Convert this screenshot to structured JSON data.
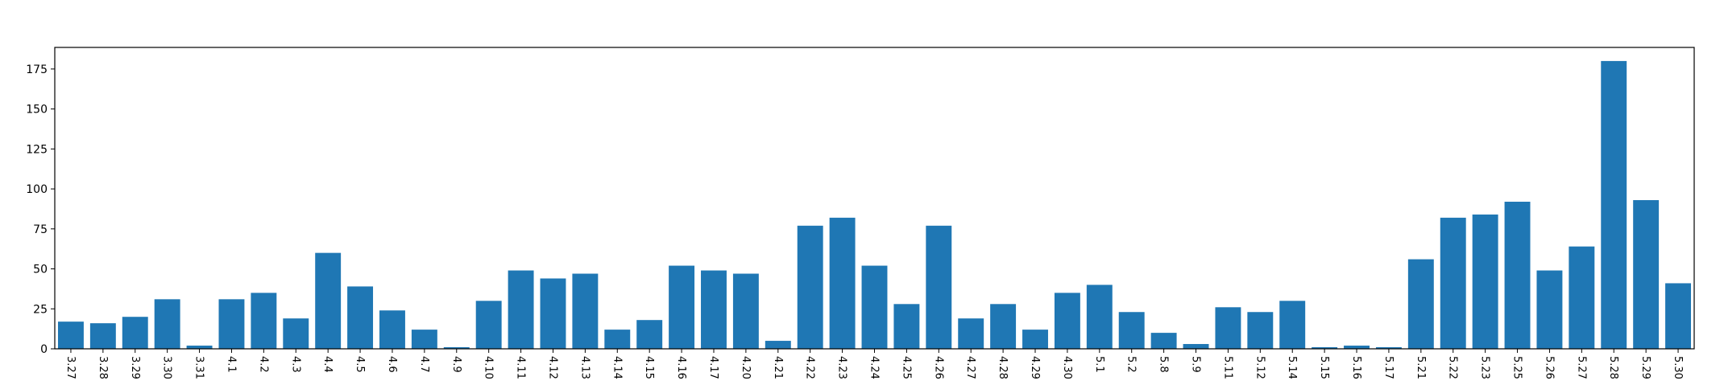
{
  "chart_data": {
    "type": "bar",
    "title": "",
    "xlabel": "",
    "ylabel": "",
    "categories": [
      "3.27",
      "3.28",
      "3.29",
      "3.30",
      "3.31",
      "4.1",
      "4.2",
      "4.3",
      "4.4",
      "4.5",
      "4.6",
      "4.7",
      "4.9",
      "4.10",
      "4.11",
      "4.12",
      "4.13",
      "4.14",
      "4.15",
      "4.16",
      "4.17",
      "4.20",
      "4.21",
      "4.22",
      "4.23",
      "4.24",
      "4.25",
      "4.26",
      "4.27",
      "4.28",
      "4.29",
      "4.30",
      "5.1",
      "5.2",
      "5.8",
      "5.9",
      "5.11",
      "5.12",
      "5.14",
      "5.15",
      "5.16",
      "5.17",
      "5.21",
      "5.22",
      "5.23",
      "5.25",
      "5.26",
      "5.27",
      "5.28",
      "5.29",
      "5.30"
    ],
    "values": [
      17,
      16,
      20,
      31,
      2,
      31,
      35,
      19,
      60,
      39,
      24,
      12,
      1,
      30,
      49,
      44,
      47,
      12,
      18,
      52,
      49,
      47,
      5,
      77,
      82,
      52,
      28,
      77,
      19,
      28,
      12,
      35,
      40,
      23,
      10,
      3,
      26,
      23,
      30,
      1,
      2,
      1,
      56,
      82,
      84,
      92,
      49,
      64,
      180,
      93,
      41
    ],
    "ylim": [
      0,
      188.5
    ],
    "yticks": [
      0,
      25,
      50,
      75,
      100,
      125,
      150,
      175
    ],
    "grid": false,
    "legend": "none",
    "bar_color": "#1f77b4"
  }
}
